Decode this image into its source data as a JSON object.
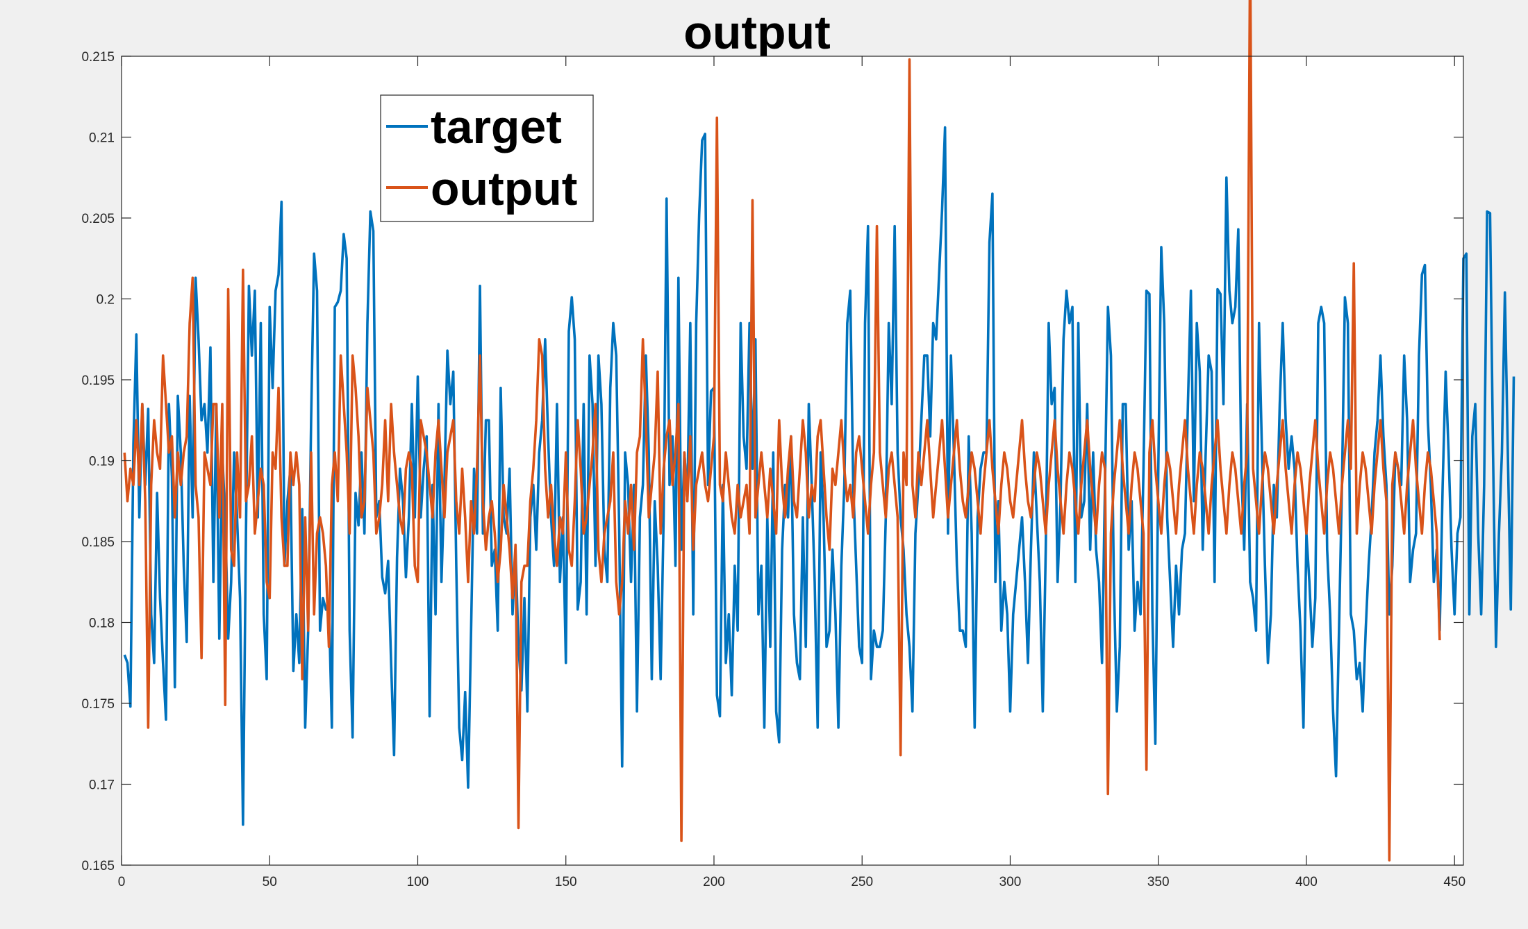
{
  "chart_data": {
    "type": "line",
    "title": "output",
    "xlabel": "",
    "ylabel": "",
    "xlim": [
      0,
      453
    ],
    "ylim": [
      0.165,
      0.215
    ],
    "xticks": [
      0,
      50,
      100,
      150,
      200,
      250,
      300,
      350,
      400,
      450
    ],
    "xtick_labels": [
      "0",
      "50",
      "100",
      "150",
      "200",
      "250",
      "300",
      "350",
      "400",
      "450"
    ],
    "yticks": [
      0.165,
      0.17,
      0.175,
      0.18,
      0.185,
      0.19,
      0.195,
      0.2,
      0.205,
      0.21,
      0.215
    ],
    "ytick_labels": [
      "0.165",
      "0.17",
      "0.175",
      "0.18",
      "0.185",
      "0.19",
      "0.195",
      "0.2",
      "0.205",
      "0.21",
      "0.215"
    ],
    "grid": false,
    "legend_position": "top-left",
    "x": {
      "start": 1,
      "end": 453,
      "step": 1
    },
    "series": [
      {
        "name": "target",
        "color": "#0072BD",
        "values": [
          0.178,
          0.1775,
          0.1748,
          0.191,
          0.1978,
          0.1865,
          0.1935,
          0.1885,
          0.1932,
          0.1805,
          0.1775,
          0.188,
          0.1815,
          0.1775,
          0.174,
          0.1935,
          0.189,
          0.176,
          0.194,
          0.1905,
          0.1835,
          0.1788,
          0.194,
          0.1865,
          0.2013,
          0.1975,
          0.1925,
          0.1935,
          0.1905,
          0.197,
          0.1825,
          0.1935,
          0.179,
          0.1905,
          0.1865,
          0.179,
          0.1825,
          0.1905,
          0.1865,
          0.1815,
          0.1675,
          0.1855,
          0.2008,
          0.1965,
          0.2005,
          0.1865,
          0.1985,
          0.1805,
          0.1765,
          0.1995,
          0.1945,
          0.2005,
          0.2015,
          0.206,
          0.1835,
          0.1875,
          0.1895,
          0.177,
          0.1805,
          0.1775,
          0.187,
          0.1735,
          0.1795,
          0.1925,
          0.2028,
          0.2005,
          0.1795,
          0.1815,
          0.1808,
          0.1812,
          0.1735,
          0.1995,
          0.1998,
          0.2005,
          0.204,
          0.2025,
          0.1795,
          0.1729,
          0.188,
          0.186,
          0.1905,
          0.1855,
          0.1985,
          0.2054,
          0.2042,
          0.1865,
          0.1875,
          0.1828,
          0.1818,
          0.1838,
          0.1775,
          0.1718,
          0.184,
          0.1895,
          0.1875,
          0.1828,
          0.1865,
          0.1935,
          0.1865,
          0.1952,
          0.1865,
          0.1895,
          0.1915,
          0.1742,
          0.1885,
          0.1805,
          0.1935,
          0.1825,
          0.1885,
          0.1968,
          0.1935,
          0.1955,
          0.1835,
          0.1735,
          0.1715,
          0.1757,
          0.1698,
          0.1795,
          0.1895,
          0.1855,
          0.2008,
          0.1855,
          0.1925,
          0.1925,
          0.1835,
          0.1845,
          0.1795,
          0.1945,
          0.1865,
          0.1855,
          0.1895,
          0.1805,
          0.1845,
          0.1785,
          0.1758,
          0.1815,
          0.1745,
          0.1865,
          0.1885,
          0.1845,
          0.1905,
          0.1925,
          0.1975,
          0.1915,
          0.1865,
          0.1835,
          0.1935,
          0.1825,
          0.1865,
          0.1775,
          0.198,
          0.2001,
          0.1975,
          0.1808,
          0.1825,
          0.1935,
          0.1805,
          0.1965,
          0.1935,
          0.1835,
          0.1965,
          0.1935,
          0.1845,
          0.1825,
          0.1945,
          0.1985,
          0.1965,
          0.1858,
          0.1711,
          0.1905,
          0.1885,
          0.1825,
          0.1885,
          0.1745,
          0.1865,
          0.1885,
          0.1965,
          0.1905,
          0.1765,
          0.1875,
          0.1835,
          0.1765,
          0.1865,
          0.2062,
          0.1885,
          0.1915,
          0.1835,
          0.2013,
          0.1845,
          0.1905,
          0.1875,
          0.1985,
          0.1805,
          0.1985,
          0.2052,
          0.2098,
          0.2102,
          0.1885,
          0.1943,
          0.1945,
          0.1755,
          0.1742,
          0.1885,
          0.1775,
          0.1805,
          0.1755,
          0.1835,
          0.1795,
          0.1985,
          0.1915,
          0.1895,
          0.1985,
          0.1895,
          0.1975,
          0.1805,
          0.1835,
          0.1735,
          0.1865,
          0.1785,
          0.1905,
          0.1745,
          0.1726,
          0.1845,
          0.1885,
          0.1865,
          0.1915,
          0.1805,
          0.1775,
          0.1765,
          0.1865,
          0.1785,
          0.1935,
          0.1885,
          0.1825,
          0.1735,
          0.1905,
          0.1865,
          0.1785,
          0.1795,
          0.1845,
          0.1805,
          0.1735,
          0.1835,
          0.1885,
          0.1985,
          0.2005,
          0.1885,
          0.1835,
          0.1785,
          0.1775,
          0.1985,
          0.2045,
          0.1765,
          0.1795,
          0.1785,
          0.1785,
          0.1795,
          0.1865,
          0.1985,
          0.1935,
          0.2045,
          0.1905,
          0.1865,
          0.1845,
          0.1805,
          0.1785,
          0.1745,
          0.1855,
          0.1885,
          0.1925,
          0.1965,
          0.1965,
          0.1915,
          0.1985,
          0.1975,
          0.2015,
          0.2055,
          0.2106,
          0.1855,
          0.1965,
          0.1905,
          0.1835,
          0.1795,
          0.1795,
          0.1785,
          0.1915,
          0.1855,
          0.1735,
          0.1865,
          0.1895,
          0.1905,
          0.1905,
          0.2035,
          0.2065,
          0.1825,
          0.1875,
          0.1795,
          0.1825,
          0.1805,
          0.1745,
          0.1805,
          0.1825,
          0.1845,
          0.1865,
          0.1825,
          0.1775,
          0.1845,
          0.1905,
          0.1865,
          0.1825,
          0.1745,
          0.1845,
          0.1985,
          0.1935,
          0.1945,
          0.1825,
          0.1875,
          0.1975,
          0.2005,
          0.1985,
          0.1995,
          0.1825,
          0.1985,
          0.1865,
          0.1875,
          0.1935,
          0.1845,
          0.1905,
          0.1845,
          0.1825,
          0.1775,
          0.1885,
          0.1995,
          0.1965,
          0.1825,
          0.1745,
          0.1785,
          0.1935,
          0.1935,
          0.1845,
          0.1875,
          0.1795,
          0.1825,
          0.1805,
          0.1895,
          0.2005,
          0.2003,
          0.1805,
          0.1725,
          0.1895,
          0.2032,
          0.1985,
          0.1865,
          0.1825,
          0.1785,
          0.1835,
          0.1805,
          0.1845,
          0.1855,
          0.1935,
          0.2005,
          0.1875,
          0.1985,
          0.1955,
          0.1845,
          0.1905,
          0.1965,
          0.1955,
          0.1825,
          0.2006,
          0.2003,
          0.1935,
          0.2075,
          0.2005,
          0.1985,
          0.1995,
          0.2043,
          0.1895,
          0.1845,
          0.1935,
          0.1825,
          0.1815,
          0.1795,
          0.1985,
          0.1905,
          0.1835,
          0.1775,
          0.1805,
          0.1885,
          0.1865,
          0.1935,
          0.1985,
          0.1925,
          0.1895,
          0.1915,
          0.1895,
          0.1835,
          0.1795,
          0.1735,
          0.1855,
          0.1825,
          0.1785,
          0.1815,
          0.1985,
          0.1995,
          0.1985,
          0.1845,
          0.1805,
          0.1745,
          0.1705,
          0.1795,
          0.1885,
          0.2001,
          0.1985,
          0.1805,
          0.1795,
          0.1765,
          0.1775,
          0.1745,
          0.1795,
          0.1835,
          0.1865,
          0.1905,
          0.1925,
          0.1965,
          0.1915,
          0.1885,
          0.1805,
          0.1835,
          0.1905,
          0.1895,
          0.1885,
          0.1965,
          0.1925,
          0.1825,
          0.1845,
          0.1855,
          0.1965,
          0.2015,
          0.2021,
          0.1925,
          0.1885,
          0.1825,
          0.1845,
          0.1795,
          0.1885,
          0.1955,
          0.1905,
          0.1845,
          0.1805,
          0.1855,
          0.1865,
          0.2025,
          0.2028,
          0.1805,
          0.1915,
          0.1935,
          0.1855,
          0.1805,
          0.1885,
          0.2054,
          0.2053,
          0.1905,
          0.1785,
          0.1855,
          0.1905,
          0.2004,
          0.1905,
          0.1808,
          0.1952
        ]
      },
      {
        "name": "output",
        "color": "#D95319",
        "values": [
          0.1905,
          0.1875,
          0.1895,
          0.1885,
          0.1925,
          0.1885,
          0.1935,
          0.1875,
          0.1735,
          0.1885,
          0.1925,
          0.1905,
          0.1895,
          0.1965,
          0.1935,
          0.1905,
          0.1915,
          0.1865,
          0.1905,
          0.1885,
          0.1905,
          0.1915,
          0.1985,
          0.2013,
          0.1885,
          0.1865,
          0.1778,
          0.1905,
          0.1895,
          0.1885,
          0.1935,
          0.1935,
          0.1865,
          0.1935,
          0.1749,
          0.2006,
          0.1845,
          0.1835,
          0.1905,
          0.1865,
          0.2018,
          0.1875,
          0.1885,
          0.1915,
          0.1855,
          0.1875,
          0.1895,
          0.1885,
          0.1825,
          0.1815,
          0.1905,
          0.1895,
          0.1945,
          0.1865,
          0.1835,
          0.1835,
          0.1905,
          0.1885,
          0.1905,
          0.1885,
          0.1765,
          0.1865,
          0.1795,
          0.1905,
          0.1805,
          0.1855,
          0.1865,
          0.1855,
          0.1835,
          0.1785,
          0.1885,
          0.1905,
          0.1875,
          0.1965,
          0.1935,
          0.1905,
          0.1855,
          0.1965,
          0.1945,
          0.1915,
          0.1865,
          0.1875,
          0.1945,
          0.1925,
          0.1905,
          0.1855,
          0.1865,
          0.1885,
          0.1925,
          0.1875,
          0.1935,
          0.1905,
          0.1885,
          0.1865,
          0.1855,
          0.1895,
          0.1905,
          0.1895,
          0.1835,
          0.1825,
          0.1925,
          0.1915,
          0.1905,
          0.1885,
          0.1865,
          0.1905,
          0.1925,
          0.1895,
          0.1865,
          0.1905,
          0.1915,
          0.1925,
          0.1875,
          0.1855,
          0.1895,
          0.1865,
          0.1825,
          0.1875,
          0.1855,
          0.1895,
          0.1965,
          0.1875,
          0.1845,
          0.1865,
          0.1875,
          0.1855,
          0.1825,
          0.1845,
          0.1885,
          0.1865,
          0.1845,
          0.1815,
          0.1848,
          0.1673,
          0.1825,
          0.1835,
          0.1835,
          0.1875,
          0.1895,
          0.1925,
          0.1975,
          0.1965,
          0.1895,
          0.1865,
          0.1885,
          0.1855,
          0.1835,
          0.1865,
          0.1855,
          0.1905,
          0.1845,
          0.1835,
          0.1875,
          0.1925,
          0.1895,
          0.1855,
          0.1865,
          0.1885,
          0.1905,
          0.1935,
          0.1845,
          0.1825,
          0.1855,
          0.1865,
          0.1875,
          0.1905,
          0.1825,
          0.1805,
          0.1825,
          0.1875,
          0.1855,
          0.1885,
          0.1845,
          0.1905,
          0.1915,
          0.1975,
          0.1925,
          0.1865,
          0.1885,
          0.1905,
          0.1955,
          0.1855,
          0.1895,
          0.1915,
          0.1925,
          0.1885,
          0.1905,
          0.1935,
          0.1665,
          0.1905,
          0.1875,
          0.1915,
          0.1845,
          0.1885,
          0.1895,
          0.1905,
          0.1885,
          0.1875,
          0.1895,
          0.1915,
          0.2112,
          0.1885,
          0.1875,
          0.1905,
          0.1885,
          0.1865,
          0.1855,
          0.1885,
          0.1865,
          0.1875,
          0.1885,
          0.1855,
          0.2061,
          0.1865,
          0.1885,
          0.1905,
          0.1885,
          0.1865,
          0.1895,
          0.1875,
          0.1855,
          0.1925,
          0.1885,
          0.1865,
          0.1895,
          0.1915,
          0.1875,
          0.1865,
          0.1895,
          0.1925,
          0.1905,
          0.1865,
          0.1885,
          0.1875,
          0.1915,
          0.1925,
          0.1895,
          0.1865,
          0.1845,
          0.1895,
          0.1885,
          0.1905,
          0.1925,
          0.1895,
          0.1875,
          0.1885,
          0.1865,
          0.1905,
          0.1915,
          0.1895,
          0.1875,
          0.1855,
          0.1885,
          0.1905,
          0.2045,
          0.1905,
          0.1885,
          0.1865,
          0.1895,
          0.1905,
          0.1885,
          0.1865,
          0.1718,
          0.1905,
          0.1885,
          0.2148,
          0.1885,
          0.1865,
          0.1905,
          0.1885,
          0.1905,
          0.1925,
          0.1895,
          0.1865,
          0.1885,
          0.1905,
          0.1925,
          0.1895,
          0.1865,
          0.1885,
          0.1905,
          0.1925,
          0.1895,
          0.1875,
          0.1865,
          0.1885,
          0.1905,
          0.1895,
          0.1875,
          0.1855,
          0.1885,
          0.1905,
          0.1925,
          0.1895,
          0.1875,
          0.1855,
          0.1885,
          0.1905,
          0.1895,
          0.1875,
          0.1865,
          0.1885,
          0.1905,
          0.1925,
          0.1895,
          0.1875,
          0.1865,
          0.1885,
          0.1905,
          0.1895,
          0.1875,
          0.1855,
          0.1885,
          0.1905,
          0.1925,
          0.1895,
          0.1875,
          0.1855,
          0.1885,
          0.1905,
          0.1895,
          0.1875,
          0.1855,
          0.1885,
          0.1905,
          0.1925,
          0.1895,
          0.1875,
          0.1855,
          0.1885,
          0.1905,
          0.1895,
          0.1694,
          0.1855,
          0.1885,
          0.1905,
          0.1925,
          0.1895,
          0.1875,
          0.1855,
          0.1885,
          0.1905,
          0.1895,
          0.1875,
          0.1855,
          0.1709,
          0.1905,
          0.1925,
          0.1895,
          0.1875,
          0.1855,
          0.1885,
          0.1905,
          0.1895,
          0.1875,
          0.1855,
          0.1885,
          0.1905,
          0.1925,
          0.1895,
          0.1875,
          0.1855,
          0.1885,
          0.1905,
          0.1895,
          0.1875,
          0.1855,
          0.1885,
          0.1905,
          0.1925,
          0.1895,
          0.1875,
          0.1855,
          0.1885,
          0.1905,
          0.1895,
          0.1875,
          0.1855,
          0.1885,
          0.1905,
          0.2222,
          0.1895,
          0.1875,
          0.1855,
          0.1885,
          0.1905,
          0.1895,
          0.1875,
          0.1855,
          0.1885,
          0.1905,
          0.1925,
          0.1895,
          0.1875,
          0.1855,
          0.1885,
          0.1905,
          0.1895,
          0.1875,
          0.1855,
          0.1885,
          0.1905,
          0.1925,
          0.1895,
          0.1875,
          0.1855,
          0.1885,
          0.1905,
          0.1895,
          0.1875,
          0.1855,
          0.1885,
          0.1905,
          0.1925,
          0.1895,
          0.2022,
          0.1855,
          0.1885,
          0.1905,
          0.1895,
          0.1875,
          0.1855,
          0.1885,
          0.1905,
          0.1925,
          0.1895,
          0.1875,
          0.1653,
          0.1885,
          0.1905,
          0.1895,
          0.1875,
          0.1855,
          0.1885,
          0.1905,
          0.1925,
          0.1895,
          0.1875,
          0.1855,
          0.1885,
          0.1905,
          0.1895,
          0.1875,
          0.1855,
          0.1789
        ]
      }
    ]
  }
}
